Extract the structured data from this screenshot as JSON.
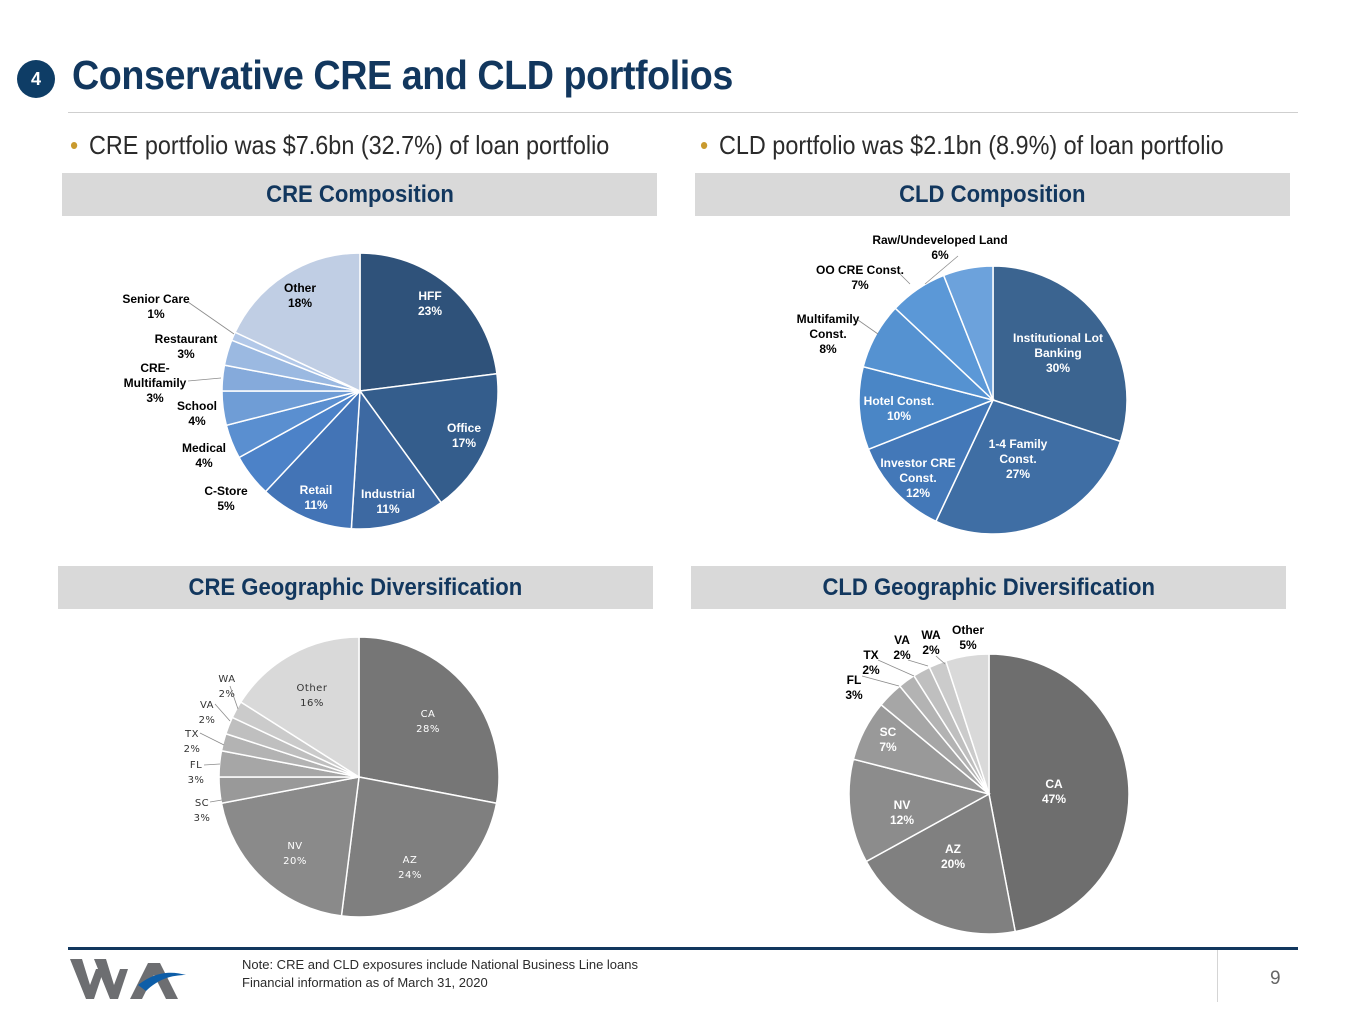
{
  "badge_number": "4",
  "page_title": "Conservative CRE and CLD portfolios",
  "bullets": [
    "CRE portfolio was $7.6bn (32.7%) of loan portfolio",
    "CLD portfolio was $2.1bn (8.9%) of loan portfolio"
  ],
  "sections": {
    "cre_composition": "CRE Composition",
    "cld_composition": "CLD Composition",
    "cre_geo": "CRE Geographic Diversification",
    "cld_geo": "CLD Geographic Diversification"
  },
  "footnotes": [
    "Note: CRE and CLD exposures include National Business Line loans",
    "Financial information as of March 31, 2020"
  ],
  "page_number": "9",
  "colors": {
    "title": "#12375e",
    "badge": "#0e3d66",
    "bullet_dot": "#c99a2e",
    "section_bg": "#d9d9d9"
  },
  "chart_data": [
    {
      "type": "pie",
      "title": "CRE Composition",
      "slices": [
        {
          "label": "HFF",
          "value": 23,
          "color": "#2f527a"
        },
        {
          "label": "Office",
          "value": 17,
          "color": "#345d8c"
        },
        {
          "label": "Industrial",
          "value": 11,
          "color": "#3d69a2"
        },
        {
          "label": "Retail",
          "value": 11,
          "color": "#4374b6"
        },
        {
          "label": "C-Store",
          "value": 5,
          "color": "#4c82c8"
        },
        {
          "label": "Medical",
          "value": 4,
          "color": "#5a8fd0"
        },
        {
          "label": "School",
          "value": 4,
          "color": "#6f9dd6"
        },
        {
          "label": "CRE-Multifamily",
          "value": 3,
          "color": "#85aadb"
        },
        {
          "label": "Restaurant",
          "value": 3,
          "color": "#9bb9e1"
        },
        {
          "label": "Senior Care",
          "value": 1,
          "color": "#b2c8e8"
        },
        {
          "label": "Other",
          "value": 18,
          "color": "#c0cee4"
        }
      ],
      "labels": [
        {
          "name": "HFF",
          "lines": [
            "HFF",
            "23%"
          ]
        },
        {
          "name": "Office",
          "lines": [
            "Office",
            "17%"
          ]
        },
        {
          "name": "Industrial",
          "lines": [
            "Industrial",
            "11%"
          ]
        },
        {
          "name": "Retail",
          "lines": [
            "Retail",
            "11%"
          ]
        },
        {
          "name": "C-Store",
          "lines": [
            "C-Store",
            "5%"
          ]
        },
        {
          "name": "Medical",
          "lines": [
            "Medical",
            "4%"
          ]
        },
        {
          "name": "School",
          "lines": [
            "School",
            "4%"
          ]
        },
        {
          "name": "CRE-Multifamily",
          "lines": [
            "CRE-",
            "Multifamily",
            "3%"
          ]
        },
        {
          "name": "Restaurant",
          "lines": [
            "Restaurant",
            "3%"
          ]
        },
        {
          "name": "Senior Care",
          "lines": [
            "Senior Care",
            "1%"
          ]
        },
        {
          "name": "Other",
          "lines": [
            "Other",
            "18%"
          ]
        }
      ]
    },
    {
      "type": "pie",
      "title": "CLD Composition",
      "slices": [
        {
          "label": "Institutional Lot Banking",
          "value": 30,
          "color": "#3b6490"
        },
        {
          "label": "1-4 Family Const.",
          "value": 27,
          "color": "#3f6ea4"
        },
        {
          "label": "Investor CRE Const.",
          "value": 12,
          "color": "#4378b8"
        },
        {
          "label": "Hotel Const.",
          "value": 10,
          "color": "#4a86c6"
        },
        {
          "label": "Multifamily Const.",
          "value": 8,
          "color": "#5592d1"
        },
        {
          "label": "OO CRE Const.",
          "value": 7,
          "color": "#5b98d7"
        },
        {
          "label": "Raw/Undeveloped Land",
          "value": 6,
          "color": "#6ca2dc"
        }
      ],
      "labels": [
        {
          "name": "Institutional Lot Banking",
          "lines": [
            "Institutional Lot",
            "Banking",
            "30%"
          ]
        },
        {
          "name": "1-4 Family Const.",
          "lines": [
            "1-4 Family",
            "Const.",
            "27%"
          ]
        },
        {
          "name": "Investor CRE Const.",
          "lines": [
            "Investor CRE",
            "Const.",
            "12%"
          ]
        },
        {
          "name": "Hotel Const.",
          "lines": [
            "Hotel Const.",
            "10%"
          ]
        },
        {
          "name": "Multifamily Const.",
          "lines": [
            "Multifamily",
            "Const.",
            "8%"
          ]
        },
        {
          "name": "OO CRE Const.",
          "lines": [
            "OO CRE Const.",
            "7%"
          ]
        },
        {
          "name": "Raw/Undeveloped Land",
          "lines": [
            "Raw/Undeveloped Land",
            "6%"
          ]
        }
      ]
    },
    {
      "type": "pie",
      "title": "CRE Geographic Diversification",
      "slices": [
        {
          "label": "CA",
          "value": 28,
          "color": "#767676"
        },
        {
          "label": "AZ",
          "value": 24,
          "color": "#7f7f7f"
        },
        {
          "label": "NV",
          "value": 20,
          "color": "#8a8a8a"
        },
        {
          "label": "SC",
          "value": 3,
          "color": "#999999"
        },
        {
          "label": "FL",
          "value": 3,
          "color": "#a6a6a6"
        },
        {
          "label": "TX",
          "value": 2,
          "color": "#b3b3b3"
        },
        {
          "label": "VA",
          "value": 2,
          "color": "#bfbfbf"
        },
        {
          "label": "WA",
          "value": 2,
          "color": "#cbcbcb"
        },
        {
          "label": "Other",
          "value": 16,
          "color": "#d9d9d9"
        }
      ],
      "labels": [
        {
          "name": "CA",
          "lines": [
            "CA",
            "28%"
          ]
        },
        {
          "name": "AZ",
          "lines": [
            "AZ",
            "24%"
          ]
        },
        {
          "name": "NV",
          "lines": [
            "NV",
            "20%"
          ]
        },
        {
          "name": "SC",
          "lines": [
            "SC",
            "3%"
          ]
        },
        {
          "name": "FL",
          "lines": [
            "FL",
            "3%"
          ]
        },
        {
          "name": "TX",
          "lines": [
            "TX",
            "2%"
          ]
        },
        {
          "name": "VA",
          "lines": [
            "VA",
            "2%"
          ]
        },
        {
          "name": "WA",
          "lines": [
            "WA",
            "2%"
          ]
        },
        {
          "name": "Other",
          "lines": [
            "Other",
            "16%"
          ]
        }
      ]
    },
    {
      "type": "pie",
      "title": "CLD Geographic Diversification",
      "slices": [
        {
          "label": "CA",
          "value": 47,
          "color": "#6e6e6e"
        },
        {
          "label": "AZ",
          "value": 20,
          "color": "#808080"
        },
        {
          "label": "NV",
          "value": 12,
          "color": "#8c8c8c"
        },
        {
          "label": "SC",
          "value": 7,
          "color": "#999999"
        },
        {
          "label": "FL",
          "value": 3,
          "color": "#a6a6a6"
        },
        {
          "label": "TX",
          "value": 2,
          "color": "#b3b3b3"
        },
        {
          "label": "VA",
          "value": 2,
          "color": "#bfbfbf"
        },
        {
          "label": "WA",
          "value": 2,
          "color": "#cbcbcb"
        },
        {
          "label": "Other",
          "value": 5,
          "color": "#d9d9d9"
        }
      ],
      "labels": [
        {
          "name": "CA",
          "lines": [
            "CA",
            "47%"
          ]
        },
        {
          "name": "AZ",
          "lines": [
            "AZ",
            "20%"
          ]
        },
        {
          "name": "NV",
          "lines": [
            "NV",
            "12%"
          ]
        },
        {
          "name": "SC",
          "lines": [
            "SC",
            "7%"
          ]
        },
        {
          "name": "FL",
          "lines": [
            "FL",
            "3%"
          ]
        },
        {
          "name": "TX",
          "lines": [
            "TX",
            "2%"
          ]
        },
        {
          "name": "VA",
          "lines": [
            "VA",
            "2%"
          ]
        },
        {
          "name": "WA",
          "lines": [
            "WA",
            "2%"
          ]
        },
        {
          "name": "Other",
          "lines": [
            "Other",
            "5%"
          ]
        }
      ]
    }
  ]
}
